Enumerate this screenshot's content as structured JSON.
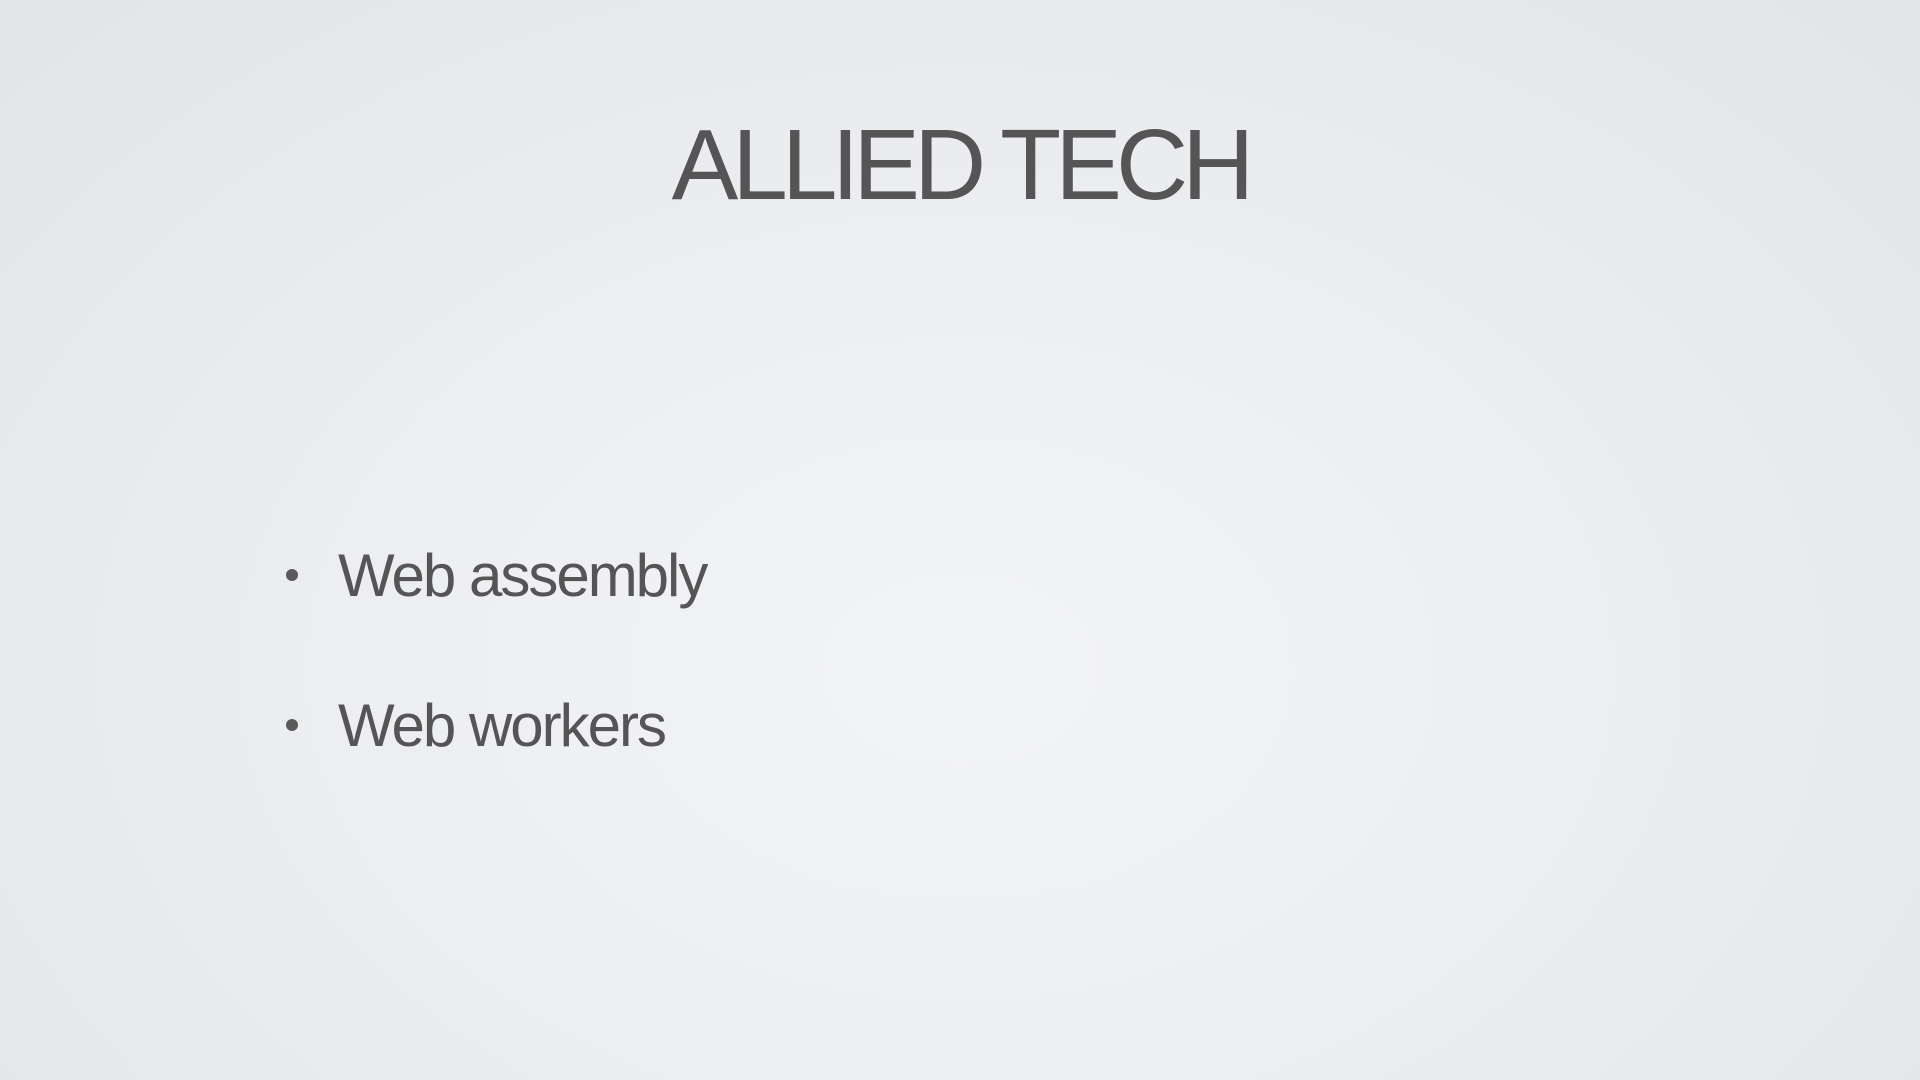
{
  "slide": {
    "title": "ALLIED TECH",
    "bullets": [
      "Web assembly",
      "Web workers"
    ]
  }
}
